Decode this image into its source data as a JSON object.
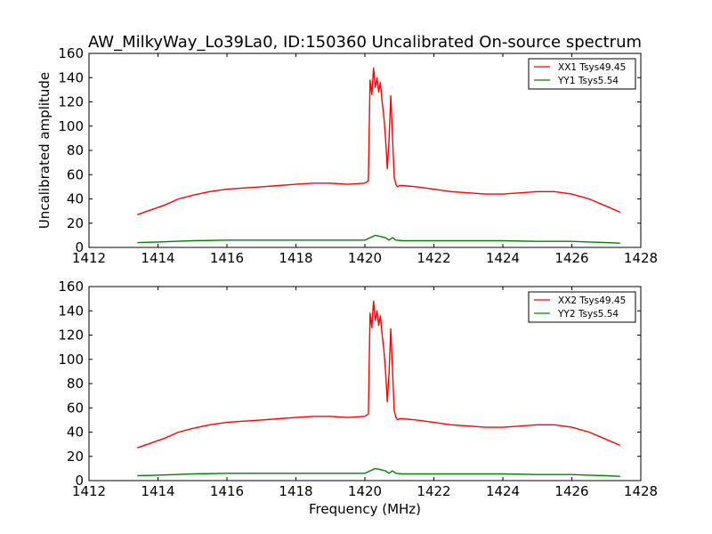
{
  "chart_data": {
    "type": "line",
    "title": "AW_MilkyWay_Lo39La0, ID:150360 Uncalibrated On-source spectrum",
    "panels": [
      {
        "xlabel": "",
        "ylabel": "Uncalibrated amplitude",
        "xlim": [
          1412,
          1428
        ],
        "ylim": [
          0,
          160
        ],
        "xticks": [
          1412,
          1414,
          1416,
          1418,
          1420,
          1422,
          1424,
          1426,
          1428
        ],
        "yticks": [
          0,
          20,
          40,
          60,
          80,
          100,
          120,
          140,
          160
        ],
        "legend_position": "top-right",
        "series": [
          {
            "name": "XX1 Tsys49.45",
            "color": "#ff0000",
            "x": [
              1413.4,
              1413.8,
              1414.2,
              1414.6,
              1415.0,
              1415.5,
              1416.0,
              1416.5,
              1417.0,
              1417.5,
              1418.0,
              1418.5,
              1419.0,
              1419.5,
              1420.0,
              1420.1,
              1420.15,
              1420.2,
              1420.25,
              1420.3,
              1420.35,
              1420.4,
              1420.45,
              1420.5,
              1420.55,
              1420.6,
              1420.65,
              1420.7,
              1420.75,
              1420.8,
              1420.85,
              1420.9,
              1420.95,
              1421.0,
              1421.1,
              1421.5,
              1422.0,
              1422.5,
              1423.0,
              1423.5,
              1424.0,
              1424.5,
              1425.0,
              1425.5,
              1426.0,
              1426.5,
              1427.0,
              1427.4
            ],
            "y": [
              27,
              31,
              35,
              40,
              43,
              46,
              48,
              49,
              50,
              51,
              52,
              53,
              53,
              52,
              53,
              55,
              138,
              126,
              148,
              132,
              140,
              128,
              136,
              120,
              108,
              90,
              65,
              88,
              125,
              92,
              58,
              52,
              50,
              51,
              51,
              50,
              48,
              46,
              45,
              44,
              44,
              45,
              46,
              46,
              44,
              40,
              34,
              29
            ]
          },
          {
            "name": "YY1 Tsys5.54",
            "color": "#008000",
            "x": [
              1413.4,
              1414.0,
              1414.5,
              1415.0,
              1416.0,
              1417.0,
              1418.0,
              1419.0,
              1420.0,
              1420.15,
              1420.3,
              1420.45,
              1420.6,
              1420.7,
              1420.8,
              1420.9,
              1421.1,
              1422.0,
              1423.0,
              1424.0,
              1425.0,
              1426.0,
              1426.5,
              1427.0,
              1427.4
            ],
            "y": [
              4,
              4.5,
              5,
              5.5,
              6,
              6,
              6,
              6,
              6,
              8,
              10,
              9,
              8,
              6,
              8,
              6,
              5.5,
              5.5,
              5.5,
              5.5,
              5,
              5,
              4.5,
              4,
              3.5
            ]
          }
        ]
      },
      {
        "xlabel": "Frequency (MHz)",
        "ylabel": "",
        "xlim": [
          1412,
          1428
        ],
        "ylim": [
          0,
          160
        ],
        "xticks": [
          1412,
          1414,
          1416,
          1418,
          1420,
          1422,
          1424,
          1426,
          1428
        ],
        "yticks": [
          0,
          20,
          40,
          60,
          80,
          100,
          120,
          140,
          160
        ],
        "legend_position": "top-right",
        "series": [
          {
            "name": "XX2 Tsys49.45",
            "color": "#ff0000",
            "x": [
              1413.4,
              1413.8,
              1414.2,
              1414.6,
              1415.0,
              1415.5,
              1416.0,
              1416.5,
              1417.0,
              1417.5,
              1418.0,
              1418.5,
              1419.0,
              1419.5,
              1420.0,
              1420.1,
              1420.15,
              1420.2,
              1420.25,
              1420.3,
              1420.35,
              1420.4,
              1420.45,
              1420.5,
              1420.55,
              1420.6,
              1420.65,
              1420.7,
              1420.75,
              1420.8,
              1420.85,
              1420.9,
              1420.95,
              1421.0,
              1421.1,
              1421.5,
              1422.0,
              1422.5,
              1423.0,
              1423.5,
              1424.0,
              1424.5,
              1425.0,
              1425.5,
              1426.0,
              1426.5,
              1427.0,
              1427.4
            ],
            "y": [
              27,
              31,
              35,
              40,
              43,
              46,
              48,
              49,
              50,
              51,
              52,
              53,
              53,
              52,
              53,
              55,
              138,
              126,
              148,
              132,
              140,
              128,
              136,
              120,
              108,
              90,
              65,
              88,
              125,
              92,
              58,
              52,
              50,
              51,
              51,
              50,
              48,
              46,
              45,
              44,
              44,
              45,
              46,
              46,
              44,
              40,
              34,
              29
            ]
          },
          {
            "name": "YY2 Tsys5.54",
            "color": "#008000",
            "x": [
              1413.4,
              1414.0,
              1414.5,
              1415.0,
              1416.0,
              1417.0,
              1418.0,
              1419.0,
              1420.0,
              1420.15,
              1420.3,
              1420.45,
              1420.6,
              1420.7,
              1420.8,
              1420.9,
              1421.1,
              1422.0,
              1423.0,
              1424.0,
              1425.0,
              1426.0,
              1426.5,
              1427.0,
              1427.4
            ],
            "y": [
              4,
              4.5,
              5,
              5.5,
              6,
              6,
              6,
              6,
              6,
              8,
              10,
              9,
              8,
              6,
              8,
              6,
              5.5,
              5.5,
              5.5,
              5.5,
              5,
              5,
              4.5,
              4,
              3.5
            ]
          }
        ]
      }
    ]
  }
}
